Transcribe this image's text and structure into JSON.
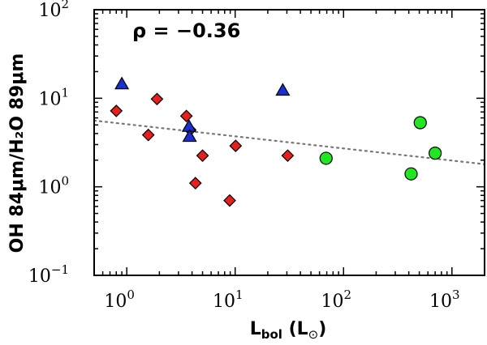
{
  "chart_data": {
    "type": "scatter",
    "xscale": "log",
    "yscale": "log",
    "xlim": [
      0.5,
      2000
    ],
    "ylim": [
      0.1,
      100
    ],
    "xlabel_main": "L",
    "xlabel_sub": "bol",
    "xlabel_unit_open": " (L",
    "xlabel_unit_symbol": "⊙",
    "xlabel_unit_close": ")",
    "ylabel": "OH 84μm/H₂O 89μm",
    "annotation": "ρ = −0.36",
    "xticks": [
      {
        "base": "10",
        "exp": "0",
        "value": 1
      },
      {
        "base": "10",
        "exp": "1",
        "value": 10
      },
      {
        "base": "10",
        "exp": "2",
        "value": 100
      },
      {
        "base": "10",
        "exp": "3",
        "value": 1000
      }
    ],
    "yticks": [
      {
        "base": "10",
        "exp": "−1",
        "value": 0.1
      },
      {
        "base": "10",
        "exp": "0",
        "value": 1
      },
      {
        "base": "10",
        "exp": "1",
        "value": 10
      },
      {
        "base": "10",
        "exp": "2",
        "value": 100
      }
    ],
    "series": [
      {
        "name": "red-diamonds",
        "marker": "diamond",
        "color": "#e8201c",
        "points": [
          [
            0.8,
            7.2
          ],
          [
            1.58,
            3.85
          ],
          [
            1.9,
            9.8
          ],
          [
            3.55,
            6.3
          ],
          [
            3.85,
            4.4
          ],
          [
            4.3,
            1.1
          ],
          [
            5.0,
            2.25
          ],
          [
            8.9,
            0.7
          ],
          [
            10.1,
            2.9
          ],
          [
            30.5,
            2.25
          ]
        ]
      },
      {
        "name": "blue-triangles",
        "marker": "triangle",
        "color": "#1a2fcf",
        "points": [
          [
            0.9,
            14.5
          ],
          [
            3.75,
            4.8
          ],
          [
            3.8,
            3.7
          ],
          [
            27.5,
            12.3
          ]
        ]
      },
      {
        "name": "green-circles",
        "marker": "circle",
        "color": "#22e622",
        "points": [
          [
            69,
            2.1
          ],
          [
            420,
            1.4
          ],
          [
            510,
            5.3
          ],
          [
            700,
            2.4
          ]
        ]
      }
    ],
    "fit_line": {
      "style": "dotted",
      "color": "#777777",
      "x": [
        0.5,
        2000
      ],
      "y": [
        5.6,
        1.8
      ]
    }
  }
}
